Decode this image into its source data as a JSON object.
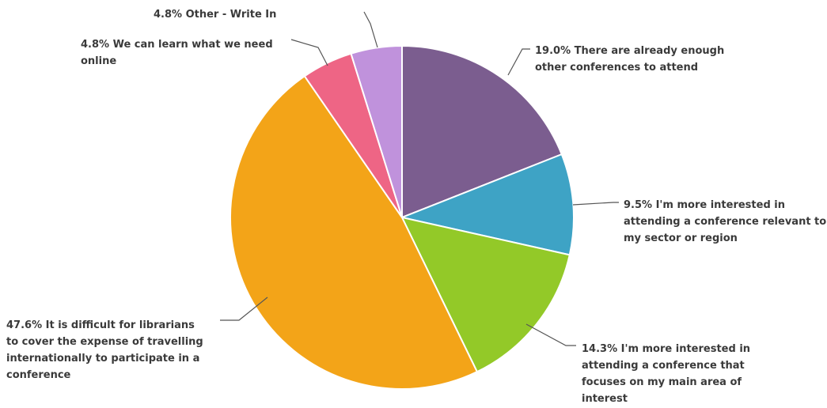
{
  "chart_data": {
    "type": "pie",
    "start_angle_deg": 0,
    "direction": "clockwise",
    "slices": [
      {
        "label": "There are already enough other conferences to attend",
        "value": 19.0,
        "pct_text": "19.0%",
        "color": "#7b5d8f"
      },
      {
        "label": "I'm more interested in attending a conference relevant to my sector or region",
        "value": 9.5,
        "pct_text": "9.5%",
        "color": "#3ea3c5"
      },
      {
        "label": "I'm more interested in attending a conference that focuses on my main area of interest",
        "value": 14.3,
        "pct_text": "14.3%",
        "color": "#93c928"
      },
      {
        "label": "It is difficult for librarians to cover the expense of travelling internationally to participate in a conference",
        "value": 47.6,
        "pct_text": "47.6%",
        "color": "#f3a418"
      },
      {
        "label": "We can learn what we need online",
        "value": 4.8,
        "pct_text": "4.8%",
        "color": "#ee6585"
      },
      {
        "label": "Other - Write In",
        "value": 4.8,
        "pct_text": "4.8%",
        "color": "#c092dc"
      }
    ],
    "label_lines": [
      [
        "19.0% There are already enough",
        "other conferences to attend"
      ],
      [
        "9.5% I'm more interested in",
        "attending a conference relevant to",
        "my sector or region"
      ],
      [
        "14.3% I'm more interested in",
        "attending a conference that",
        "focuses on my main area of",
        "interest"
      ],
      [
        "47.6% It is difficult for librarians",
        "to cover the expense of travelling",
        "internationally to participate in a",
        "conference"
      ],
      [
        "4.8% We can learn what we need",
        "online"
      ],
      [
        "4.8% Other - Write In"
      ]
    ]
  }
}
